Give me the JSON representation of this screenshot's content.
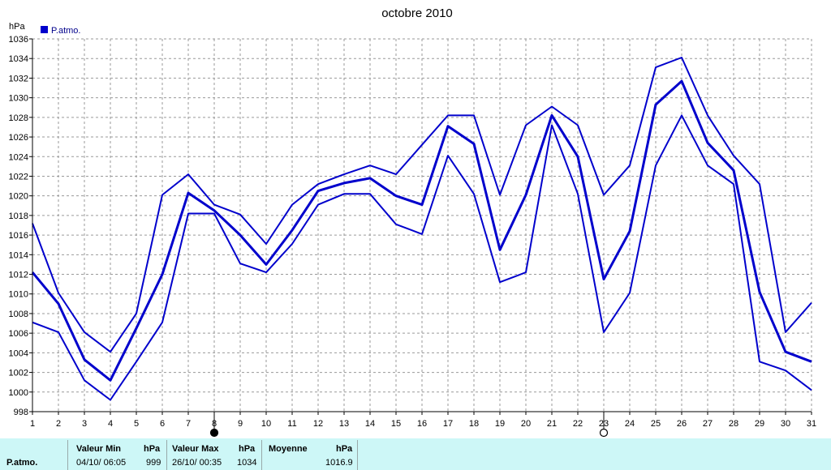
{
  "chart_data": {
    "type": "line",
    "title": "octobre 2010",
    "ylabel": "hPa",
    "legend": "P.atmo.",
    "legend_color": "#0000cc",
    "line_color": "#0000cc",
    "ylim": [
      998,
      1036
    ],
    "yticks": [
      998,
      1000,
      1002,
      1004,
      1006,
      1008,
      1010,
      1012,
      1014,
      1016,
      1018,
      1020,
      1022,
      1024,
      1026,
      1028,
      1030,
      1032,
      1034,
      1036
    ],
    "x": [
      1,
      2,
      3,
      4,
      5,
      6,
      7,
      8,
      9,
      10,
      11,
      12,
      13,
      14,
      15,
      16,
      17,
      18,
      19,
      20,
      21,
      22,
      23,
      24,
      25,
      26,
      27,
      28,
      29,
      30,
      31
    ],
    "grid": true,
    "series": [
      {
        "role": "max",
        "values": [
          1017.2,
          1010.1,
          1006.1,
          1004.1,
          1008.0,
          1020.1,
          1022.2,
          1019.1,
          1018.1,
          1015.1,
          1019.1,
          1021.2,
          1022.2,
          1023.1,
          1022.2,
          1025.2,
          1028.2,
          1028.2,
          1020.1,
          1027.2,
          1029.1,
          1027.2,
          1020.1,
          1023.1,
          1033.1,
          1034.1,
          1028.2,
          1024.1,
          1021.2,
          1006.1,
          1009.1
        ]
      },
      {
        "role": "mean",
        "values": [
          1012.2,
          1009.0,
          1003.3,
          1001.2,
          1006.5,
          1012.0,
          1020.3,
          1018.5,
          1016.0,
          1013.0,
          1016.5,
          1020.5,
          1021.3,
          1021.8,
          1020.0,
          1019.1,
          1027.1,
          1025.3,
          1014.5,
          1020.1,
          1028.2,
          1024.0,
          1011.5,
          1016.4,
          1029.3,
          1031.7,
          1025.4,
          1022.6,
          1010.2,
          1004.1,
          1003.1
        ]
      },
      {
        "role": "min",
        "values": [
          1007.1,
          1006.1,
          1001.2,
          999.2,
          1003.1,
          1007.1,
          1018.2,
          1018.2,
          1013.1,
          1012.2,
          1015.1,
          1019.1,
          1020.2,
          1020.2,
          1017.1,
          1016.1,
          1024.1,
          1020.2,
          1011.2,
          1012.2,
          1027.2,
          1020.2,
          1006.1,
          1010.1,
          1023.1,
          1028.2,
          1023.1,
          1021.2,
          1003.1,
          1002.2,
          1000.2
        ]
      }
    ],
    "moon_markers": [
      {
        "day": 8,
        "phase": "full"
      },
      {
        "day": 23,
        "phase": "new"
      }
    ]
  },
  "stats": {
    "row_label": "P.atmo.",
    "min_header": "Valeur Min",
    "min_unit": "hPa",
    "min_date": "04/10/  06:05",
    "min_value": "999",
    "max_header": "Valeur Max",
    "max_unit": "hPa",
    "max_date": "26/10/  00:35",
    "max_value": "1034",
    "avg_header": "Moyenne",
    "avg_unit": "hPa",
    "avg_value": "1016.9"
  }
}
